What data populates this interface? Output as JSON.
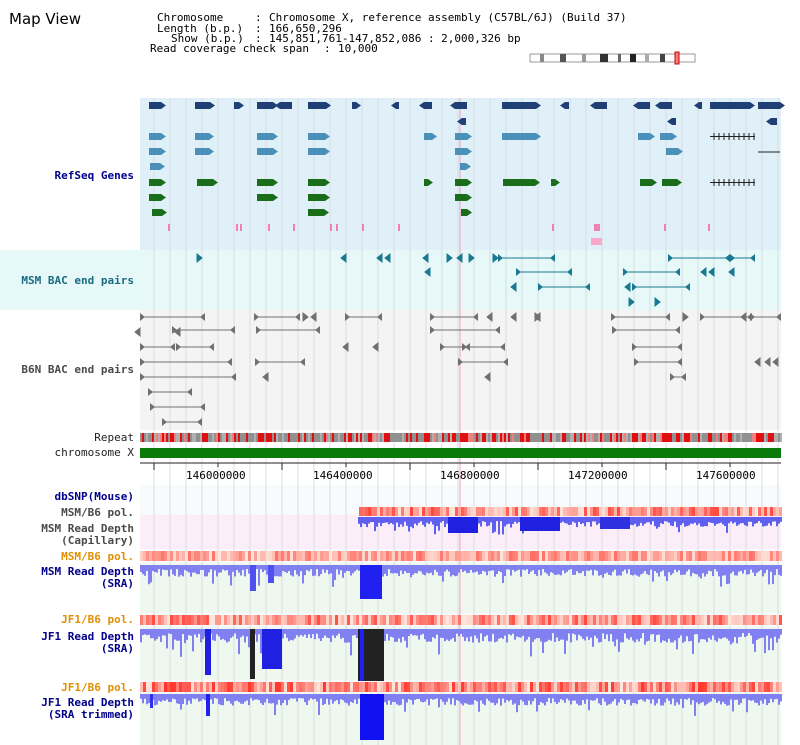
{
  "app": {
    "title": "Map View"
  },
  "header": {
    "chromosome_label": "Chromosome",
    "chromosome_value": "Chromosome X, reference assembly (C57BL/6J) (Build 37)",
    "length_label": "Length (b.p.)",
    "length_value": "166,650,296",
    "show_label": "Show (b.p.)",
    "show_value": "145,851,761-147,852,086 : 2,000,326 bp",
    "coverage_label": "Read coverage check span",
    "coverage_value": "10,000"
  },
  "tracks": {
    "refseq": "RefSeq Genes",
    "msm_bac": "MSM BAC end pairs",
    "b6n_bac": "B6N BAC end pairs",
    "repeat": "Repeat",
    "chromosome": "chromosome X",
    "dbsnp": "dbSNP(Mouse)",
    "msm_b6_pol_1": "MSM/B6 pol.",
    "msm_depth_cap_1": "MSM Read Depth",
    "msm_depth_cap_2": "(Capillary)",
    "msm_b6_pol_2": "MSM/B6 pol.",
    "msm_depth_sra_1": "MSM Read Depth",
    "msm_depth_sra_2": "(SRA)",
    "jf1_b6_pol_1": "JF1/B6 pol.",
    "jf1_depth_sra_1": "JF1 Read Depth",
    "jf1_depth_sra_2": "(SRA)",
    "jf1_b6_pol_2": "JF1/B6 pol.",
    "jf1_depth_trim_1": "JF1 Read Depth",
    "jf1_depth_trim_2": "(SRA trimmed)"
  },
  "axis": {
    "ticks": [
      "146000000",
      "146400000",
      "146800000",
      "147200000",
      "147600000"
    ]
  },
  "colors": {
    "refseq_bg": "#e0f0f8",
    "bac_msm_bg": "#e6f8f8",
    "bac_b6n_bg": "#f4f4f4",
    "gene_navy": "#1f3f75",
    "gene_blue": "#4a90b8",
    "gene_green": "#1a6e1a",
    "pink": "#f080b0",
    "bac_teal": "#1a7890",
    "bac_gray": "#707070",
    "chromosome_green": "#0a7a0a",
    "depth_blue": "#3030f0",
    "depth_light": "#8080f0",
    "depth_black": "#222222",
    "label_navy": "#00008b",
    "label_orange": "#e09000",
    "label_teal": "#1a6b82"
  }
}
